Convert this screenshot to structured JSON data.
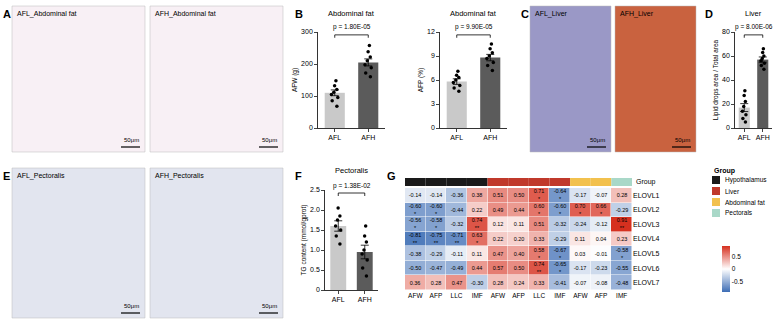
{
  "image_panels": [
    {
      "label": "A",
      "images": [
        {
          "title": "AFL_Abdominal fat",
          "scale_bar": "50μm"
        },
        {
          "title": "AFH_Abdominal fat",
          "scale_bar": "50μm"
        }
      ]
    },
    {
      "label": "C",
      "images": [
        {
          "title": "AFL_Liver",
          "scale_bar": "50μm"
        },
        {
          "title": "AFH_Liver",
          "scale_bar": "50μm"
        }
      ]
    },
    {
      "label": "E",
      "images": [
        {
          "title": "AFL_Pectoralis",
          "scale_bar": "50μm"
        },
        {
          "title": "AFH_Pectoralis",
          "scale_bar": "50μm"
        }
      ]
    }
  ],
  "chart_data": [
    {
      "label": "B",
      "type": "bar",
      "title": "Abdominal fat",
      "y_label": "AFW (g)",
      "categories": [
        "AFL",
        "AFH"
      ],
      "values": [
        110,
        205
      ],
      "errors": [
        9,
        11
      ],
      "points": [
        [
          68,
          85,
          95,
          105,
          112,
          120,
          132,
          148
        ],
        [
          160,
          172,
          188,
          198,
          210,
          222,
          238,
          258
        ]
      ],
      "colors": [
        "#c9c9c9",
        "#5b5b5b"
      ],
      "ylim": [
        0,
        300
      ],
      "yticks": [
        0,
        100,
        200,
        300
      ],
      "annotation": "p = 1.80E-05"
    },
    {
      "type": "bar",
      "title": "Abdominal fat",
      "y_label": "AFP (%)",
      "categories": [
        "AFL",
        "AFH"
      ],
      "values": [
        5.8,
        8.8
      ],
      "errors": [
        0.35,
        0.4
      ],
      "points": [
        [
          4.6,
          5.0,
          5.3,
          5.7,
          6.0,
          6.3,
          6.6,
          7.1
        ],
        [
          7.2,
          7.8,
          8.2,
          8.7,
          9.0,
          9.4,
          9.9,
          10.5
        ]
      ],
      "colors": [
        "#c9c9c9",
        "#5b5b5b"
      ],
      "ylim": [
        0,
        12
      ],
      "yticks": [
        0,
        3,
        6,
        9,
        12
      ],
      "annotation": "p = 9.90E-05"
    },
    {
      "label": "D",
      "type": "bar",
      "title": "Liver",
      "y_label": "Lipid drops area / Total area",
      "categories": [
        "AFL",
        "AFH"
      ],
      "values": [
        17,
        57
      ],
      "errors": [
        3.3,
        2.2
      ],
      "points": [
        [
          5,
          8,
          11,
          14,
          18,
          22,
          27,
          31
        ],
        [
          49,
          52,
          54,
          56,
          58,
          60,
          63,
          66
        ]
      ],
      "colors": [
        "#c9c9c9",
        "#5b5b5b"
      ],
      "ylim": [
        0,
        80
      ],
      "yticks": [
        0,
        20,
        40,
        60,
        80
      ],
      "annotation": "p = 8.00E-06"
    },
    {
      "label": "F",
      "type": "bar",
      "title": "Pectoralis",
      "y_label": "TG content (mmol/gprot)",
      "categories": [
        "AFL",
        "AFH"
      ],
      "values": [
        1.6,
        0.95
      ],
      "errors": [
        0.13,
        0.17
      ],
      "points": [
        [
          1.15,
          1.35,
          1.5,
          1.6,
          1.75,
          1.85,
          2.05
        ],
        [
          0.35,
          0.55,
          0.75,
          0.9,
          1.0,
          1.2,
          1.35,
          1.6
        ]
      ],
      "colors": [
        "#c9c9c9",
        "#5b5b5b"
      ],
      "ylim": [
        0,
        2.5
      ],
      "yticks": [
        0,
        0.5,
        {
          "value": 1,
          "label": "1.0"
        },
        1.5,
        {
          "value": 2,
          "label": "2.0"
        },
        2.5
      ],
      "annotation": "p = 1.38E-02"
    },
    {
      "label": "G",
      "type": "heatmap",
      "x": [
        "AFW",
        "AFP",
        "LLC",
        "IMF",
        "AFW",
        "AFP",
        "LLC",
        "IMF",
        "AFW",
        "AFP",
        "IMF"
      ],
      "y": [
        "ELOVL1",
        "ELOVL2",
        "ELOVL3",
        "ELOVL4",
        "ELOVL5",
        "ELOVL6",
        "ELOVL7"
      ],
      "values": [
        [
          -0.14,
          -0.14,
          -0.36,
          0.38,
          0.51,
          0.5,
          0.71,
          -0.64,
          -0.17,
          -0.07,
          0.28
        ],
        [
          -0.6,
          -0.6,
          -0.44,
          0.22,
          0.49,
          0.44,
          0.6,
          -0.6,
          0.7,
          0.66,
          -0.29
        ],
        [
          -0.56,
          -0.58,
          -0.32,
          0.74,
          0.12,
          0.11,
          0.51,
          -0.32,
          -0.24,
          -0.12,
          0.91
        ],
        [
          -0.81,
          -0.75,
          -0.71,
          0.63,
          0.22,
          0.2,
          0.33,
          -0.29,
          0.11,
          0.04,
          0.23
        ],
        [
          -0.38,
          -0.29,
          -0.11,
          0.11,
          0.47,
          0.4,
          0.58,
          -0.67,
          0.03,
          -0.01,
          -0.58
        ],
        [
          -0.5,
          -0.47,
          -0.49,
          0.44,
          0.57,
          0.5,
          0.74,
          -0.65,
          -0.17,
          -0.23,
          -0.55
        ],
        [
          0.36,
          0.28,
          0.47,
          -0.3,
          0.28,
          0.24,
          0.33,
          -0.41,
          -0.07,
          -0.08,
          -0.48
        ]
      ],
      "value_labels": [
        [
          "-0.14",
          "-0.14",
          "-0.36",
          "0.38",
          "0.51",
          "0.50",
          "0.71",
          "-0.64",
          "-0.17",
          "-0.07",
          "0.28"
        ],
        [
          "-0.60",
          "-0.60",
          "-0.44",
          "0.22",
          "0.49",
          "0.44",
          "0.60",
          "-0.60",
          "0.70",
          "0.66",
          "-0.29"
        ],
        [
          "-0.56",
          "-0.58",
          "-0.32",
          "0.74",
          "0.12",
          "0.11",
          "0.51",
          "-0.32",
          "-0.24",
          "-0.12",
          "0.91"
        ],
        [
          "-0.81",
          "-0.75",
          "-0.71",
          "0.63",
          "0.22",
          "0.20",
          "0.33",
          "-0.29",
          "0.11",
          "0.04",
          "0.23"
        ],
        [
          "-0.38",
          "-0.29",
          "-0.11",
          "0.11",
          "0.47",
          "0.40",
          "0.58",
          "-0.67",
          "0.03",
          "-0.01",
          "-0.58"
        ],
        [
          "-0.50",
          "-0.47",
          "-0.49",
          "0.44",
          "0.57",
          "0.50",
          "0.74",
          "-0.65",
          "-0.17",
          "-0.23",
          "-0.55"
        ],
        [
          "0.36",
          "0.28",
          "0.47",
          "-0.30",
          "0.28",
          "0.24",
          "0.33",
          "-0.41",
          "-0.07",
          "-0.08",
          "-0.48"
        ]
      ],
      "stars": [
        [
          null,
          null,
          null,
          null,
          null,
          null,
          "*",
          "*",
          null,
          null,
          null
        ],
        [
          "*",
          "*",
          null,
          null,
          null,
          null,
          "*",
          "*",
          "*",
          "*",
          null
        ],
        [
          "*",
          "*",
          null,
          "**",
          null,
          null,
          null,
          null,
          null,
          null,
          "**"
        ],
        [
          "**",
          "**",
          "**",
          "*",
          null,
          null,
          null,
          null,
          null,
          null,
          null
        ],
        [
          null,
          null,
          null,
          null,
          null,
          null,
          "*",
          "*",
          null,
          null,
          "*"
        ],
        [
          null,
          null,
          null,
          null,
          null,
          null,
          "**",
          "*",
          null,
          null,
          null
        ],
        [
          null,
          null,
          null,
          null,
          null,
          null,
          null,
          null,
          null,
          null,
          null
        ]
      ],
      "column_groups": [
        "Hypothalamus",
        "Hypothalamus",
        "Hypothalamus",
        "Hypothalamus",
        "Liver",
        "Liver",
        "Liver",
        "Liver",
        "Abdominal fat",
        "Abdominal fat",
        "Pectorals"
      ],
      "groups": [
        {
          "name": "Hypothalamus",
          "color": "#1a1a1a"
        },
        {
          "name": "Liver",
          "color": "#c0392b"
        },
        {
          "name": "Abdominal fat",
          "color": "#f2c14e"
        },
        {
          "name": "Pectorals",
          "color": "#a9d8c8"
        }
      ],
      "group_label": "Group",
      "zlim": [
        -0.9,
        0.9
      ],
      "colorbar_ticks": [
        -0.5,
        0,
        0.5
      ]
    }
  ]
}
